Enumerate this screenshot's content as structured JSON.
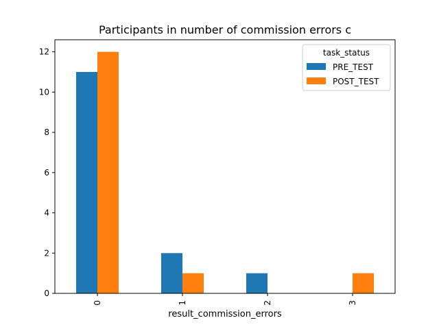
{
  "chart_data": {
    "type": "bar",
    "title": "Participants in number of commission errors c",
    "xlabel": "result_commission_errors",
    "ylabel": "",
    "categories": [
      "0",
      "1",
      "2",
      "3"
    ],
    "series": [
      {
        "name": "PRE_TEST",
        "values": [
          11,
          2,
          1,
          0
        ],
        "color": "#1f77b4"
      },
      {
        "name": "POST_TEST",
        "values": [
          12,
          1,
          0,
          1
        ],
        "color": "#ff7f0e"
      }
    ],
    "ylim": [
      0,
      12.6
    ],
    "yticks": [
      0,
      2,
      4,
      6,
      8,
      10,
      12
    ],
    "legend": {
      "title": "task_status",
      "placement": "top-right"
    },
    "grid": false
  }
}
